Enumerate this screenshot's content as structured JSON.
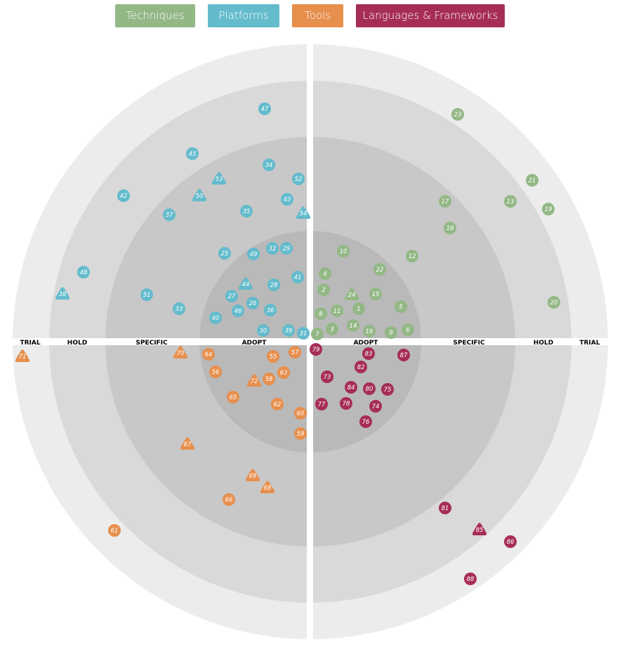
{
  "legend": [
    {
      "label": "Techniques",
      "color": "#93b886"
    },
    {
      "label": "Platforms",
      "color": "#63bbcc"
    },
    {
      "label": "Tools",
      "color": "#e78f4d"
    },
    {
      "label": "Languages & Frameworks",
      "color": "#a62d57"
    }
  ],
  "rings": {
    "left": [
      "TRIAL",
      "HOLD",
      "SPECIFIC",
      "ADOPT"
    ],
    "right": [
      "ADOPT",
      "SPECIFIC",
      "HOLD",
      "TRIAL"
    ]
  },
  "ring_colors": [
    "#b9b9b9",
    "#c8c8c8",
    "#d9d9d9",
    "#ececec"
  ],
  "quadrants": [
    {
      "name": "Techniques",
      "color": "#93b886",
      "triangles": [
        24
      ],
      "blips": [
        1,
        2,
        3,
        4,
        5,
        6,
        7,
        8,
        9,
        10,
        11,
        12,
        13,
        14,
        15,
        16,
        17,
        18,
        19,
        20,
        21,
        22,
        23,
        24
      ]
    },
    {
      "name": "Platforms",
      "color": "#63bbcc",
      "triangles": [
        38,
        44,
        50,
        53,
        54
      ],
      "blips": [
        25,
        26,
        27,
        28,
        29,
        30,
        31,
        32,
        33,
        34,
        35,
        36,
        37,
        38,
        39,
        40,
        41,
        42,
        43,
        44,
        45,
        46,
        47,
        48,
        49,
        50,
        51,
        52,
        53,
        54
      ]
    },
    {
      "name": "Tools",
      "color": "#e78f4d",
      "triangles": [
        67,
        68,
        69,
        70,
        71,
        72
      ],
      "blips": [
        55,
        56,
        57,
        58,
        59,
        60,
        61,
        62,
        63,
        64,
        65,
        66,
        67,
        68,
        69,
        70,
        71,
        72
      ]
    },
    {
      "name": "Languages & Frameworks",
      "color": "#a62d57",
      "triangles": [
        85
      ],
      "blips": [
        73,
        74,
        75,
        76,
        77,
        78,
        79,
        80,
        81,
        82,
        83,
        84,
        85,
        86,
        87,
        88
      ]
    }
  ]
}
